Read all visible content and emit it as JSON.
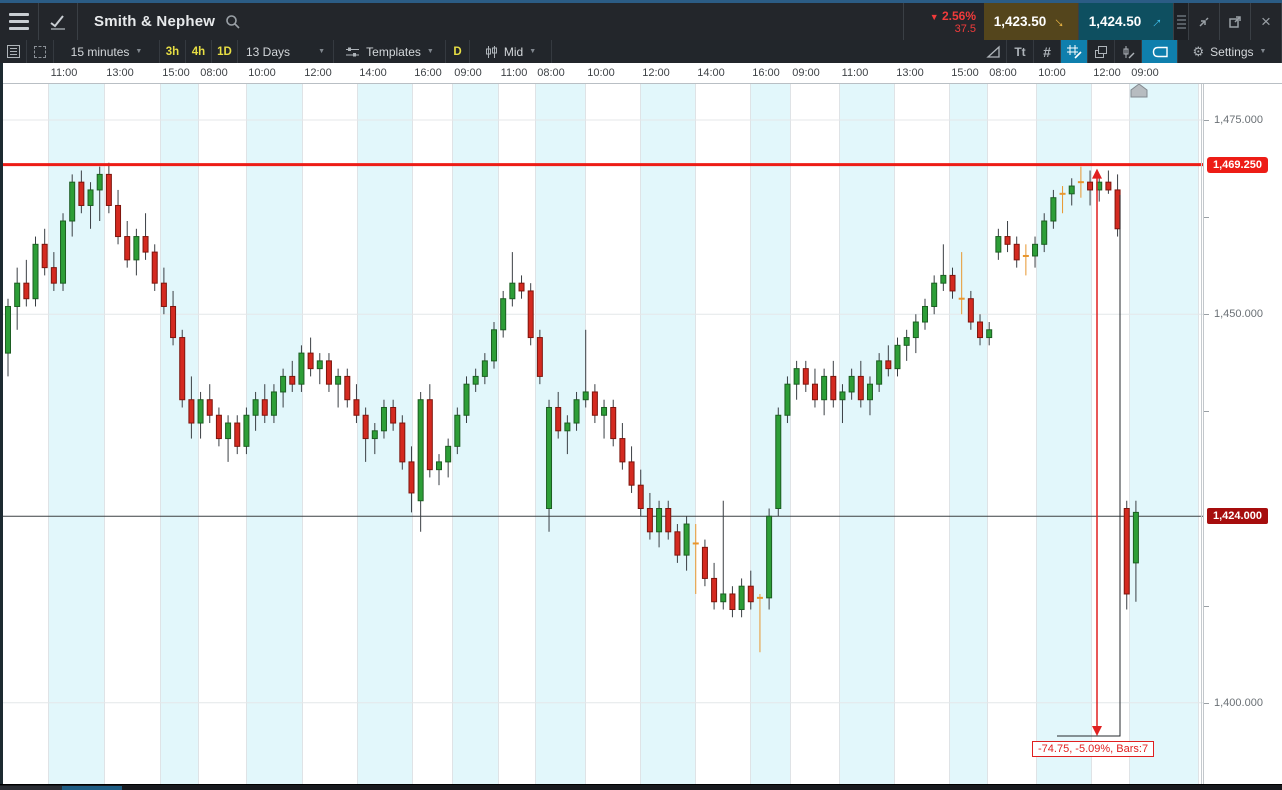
{
  "header": {
    "title": "Smith & Nephew",
    "change_direction": "down",
    "change_pct": "2.56%",
    "change_points": "37.5",
    "sell_price": "1,423.50",
    "buy_price": "1,424.50"
  },
  "toolbar": {
    "interval": "15 minutes",
    "quick_intervals": [
      "3h",
      "4h",
      "1D"
    ],
    "range": "13 Days",
    "templates": "Templates",
    "day_button": "D",
    "price_mode": "Mid",
    "text_tool": "Tt",
    "settings": "Settings"
  },
  "chart_data": {
    "type": "candlestick",
    "instrument": "Smith & Nephew",
    "interval": "15 minutes",
    "range": "13 Days",
    "time_labels": [
      "11:00",
      "13:00",
      "15:00",
      "08:00",
      "10:00",
      "12:00",
      "14:00",
      "16:00",
      "09:00",
      "11:00",
      "08:00",
      "10:00",
      "12:00",
      "14:00",
      "16:00",
      "09:00",
      "11:00",
      "13:00",
      "15:00",
      "08:00",
      "10:00",
      "12:00",
      "09:00"
    ],
    "price_ticks": [
      {
        "label": "1,475.000",
        "value": 1475
      },
      {
        "label": "1,450.000",
        "value": 1450
      },
      {
        "label": "1,400.000",
        "value": 1400
      }
    ],
    "minor_tick_values": [
      1462.5,
      1437.5,
      1412.5
    ],
    "horizontal_line": {
      "value": 1469.25,
      "label": "1,469.250"
    },
    "current_price": {
      "value": 1424.0,
      "label": "1,424.000"
    },
    "measurement": {
      "text": "-74.75, -5.09%, Bars:7",
      "from": 1469.25,
      "change": -74.75,
      "pct": "-5.09%",
      "bars": 7
    },
    "ylim": [
      1394,
      1480
    ],
    "candles": [
      [
        1445,
        1452,
        1442,
        1451
      ],
      [
        1451,
        1456,
        1448,
        1454
      ],
      [
        1454,
        1457,
        1451,
        1452
      ],
      [
        1452,
        1460,
        1451,
        1459
      ],
      [
        1459,
        1461,
        1455,
        1456
      ],
      [
        1456,
        1458,
        1453,
        1454
      ],
      [
        1454,
        1463,
        1453,
        1462
      ],
      [
        1462,
        1468,
        1460,
        1467
      ],
      [
        1467,
        1468.5,
        1463,
        1464
      ],
      [
        1464,
        1467,
        1461,
        1466
      ],
      [
        1466,
        1469,
        1462,
        1468
      ],
      [
        1468,
        1469.5,
        1463,
        1464
      ],
      [
        1464,
        1466,
        1459,
        1460
      ],
      [
        1460,
        1462,
        1456,
        1457
      ],
      [
        1457,
        1461,
        1455,
        1460
      ],
      [
        1460,
        1463,
        1457,
        1458
      ],
      [
        1458,
        1459,
        1453,
        1454
      ],
      [
        1454,
        1456,
        1450,
        1451
      ],
      [
        1451,
        1453,
        1446,
        1447
      ],
      [
        1447,
        1448,
        1438,
        1439
      ],
      [
        1439,
        1442,
        1434,
        1436
      ],
      [
        1436,
        1440,
        1434,
        1439
      ],
      [
        1439,
        1441,
        1436,
        1437
      ],
      [
        1437,
        1438,
        1433,
        1434
      ],
      [
        1434,
        1437,
        1431,
        1436
      ],
      [
        1436,
        1437,
        1432,
        1433
      ],
      [
        1433,
        1438,
        1432,
        1437
      ],
      [
        1437,
        1440,
        1435,
        1439
      ],
      [
        1439,
        1441,
        1436,
        1437
      ],
      [
        1437,
        1441,
        1436,
        1440
      ],
      [
        1440,
        1443,
        1438,
        1442
      ],
      [
        1442,
        1444,
        1440,
        1441
      ],
      [
        1441,
        1446,
        1440,
        1445
      ],
      [
        1445,
        1447,
        1442,
        1443
      ],
      [
        1443,
        1445,
        1441,
        1444
      ],
      [
        1444,
        1445,
        1440,
        1441
      ],
      [
        1441,
        1443,
        1438,
        1442
      ],
      [
        1442,
        1443,
        1438,
        1439
      ],
      [
        1439,
        1441,
        1436,
        1437
      ],
      [
        1437,
        1438,
        1431,
        1434
      ],
      [
        1434,
        1436,
        1432,
        1435
      ],
      [
        1435,
        1439,
        1434,
        1438
      ],
      [
        1438,
        1439,
        1435,
        1436
      ],
      [
        1436,
        1437,
        1430,
        1431
      ],
      [
        1431,
        1433,
        1424.5,
        1427
      ],
      [
        1426,
        1440,
        1422,
        1439
      ],
      [
        1439,
        1441,
        1429,
        1430
      ],
      [
        1430,
        1432,
        1428,
        1431
      ],
      [
        1431,
        1434,
        1429,
        1433
      ],
      [
        1433,
        1438,
        1432,
        1437
      ],
      [
        1437,
        1442,
        1436,
        1441
      ],
      [
        1441,
        1443,
        1440,
        1442
      ],
      [
        1442,
        1445,
        1441,
        1444
      ],
      [
        1444,
        1449,
        1443,
        1448
      ],
      [
        1448,
        1453,
        1447,
        1452
      ],
      [
        1452,
        1458,
        1451,
        1454
      ],
      [
        1454,
        1455,
        1452,
        1453
      ],
      [
        1453,
        1454,
        1446,
        1447
      ],
      [
        1447,
        1448,
        1441,
        1442
      ],
      [
        1425,
        1439,
        1422,
        1438
      ],
      [
        1438,
        1440,
        1434,
        1435
      ],
      [
        1435,
        1437,
        1432,
        1436
      ],
      [
        1436,
        1440,
        1435,
        1439
      ],
      [
        1439,
        1448,
        1438,
        1440
      ],
      [
        1440,
        1441,
        1436,
        1437
      ],
      [
        1437,
        1439,
        1434,
        1438
      ],
      [
        1438,
        1439,
        1433,
        1434
      ],
      [
        1434,
        1436,
        1430,
        1431
      ],
      [
        1431,
        1433,
        1427,
        1428
      ],
      [
        1428,
        1430,
        1424,
        1425
      ],
      [
        1425,
        1427,
        1421,
        1422
      ],
      [
        1422,
        1426,
        1420,
        1425
      ],
      [
        1425,
        1426,
        1421,
        1422
      ],
      [
        1422,
        1423,
        1418,
        1419
      ],
      [
        1419,
        1424,
        1417,
        1423
      ],
      [
        1420,
        1423,
        1414,
        1420.5
      ],
      [
        1420,
        1421,
        1415,
        1416
      ],
      [
        1416,
        1418,
        1412,
        1413
      ],
      [
        1413,
        1426,
        1412,
        1414
      ],
      [
        1414,
        1415,
        1411,
        1412
      ],
      [
        1412,
        1416,
        1411,
        1415
      ],
      [
        1415,
        1417,
        1412,
        1413
      ],
      [
        1413,
        1414,
        1406.5,
        1413.5
      ],
      [
        1413.5,
        1425,
        1412,
        1424
      ],
      [
        1425,
        1438,
        1424,
        1437
      ],
      [
        1437,
        1442,
        1436,
        1441
      ],
      [
        1441,
        1444,
        1439,
        1443
      ],
      [
        1443,
        1444,
        1440,
        1441
      ],
      [
        1441,
        1443,
        1438,
        1439
      ],
      [
        1439,
        1443,
        1437,
        1442
      ],
      [
        1442,
        1444,
        1438,
        1439
      ],
      [
        1439,
        1441,
        1436,
        1440
      ],
      [
        1440,
        1443,
        1439,
        1442
      ],
      [
        1442,
        1444,
        1438,
        1439
      ],
      [
        1439,
        1442,
        1437,
        1441
      ],
      [
        1441,
        1445,
        1440,
        1444
      ],
      [
        1444,
        1446,
        1442,
        1443
      ],
      [
        1443,
        1447,
        1442,
        1446
      ],
      [
        1446,
        1448,
        1444,
        1447
      ],
      [
        1447,
        1450,
        1445,
        1449
      ],
      [
        1449,
        1452,
        1448,
        1451
      ],
      [
        1451,
        1455,
        1450,
        1454
      ],
      [
        1454,
        1459,
        1453,
        1455
      ],
      [
        1455,
        1456,
        1452,
        1453
      ],
      [
        1452.5,
        1458,
        1450,
        1452
      ],
      [
        1452,
        1453,
        1448,
        1449
      ],
      [
        1449,
        1450,
        1446,
        1447
      ],
      [
        1447,
        1449,
        1446,
        1448
      ],
      [
        1458,
        1461,
        1457,
        1460
      ],
      [
        1460,
        1462,
        1458,
        1459
      ],
      [
        1459,
        1460,
        1456,
        1457
      ],
      [
        1457,
        1459,
        1455,
        1457.5
      ],
      [
        1457.5,
        1460,
        1456,
        1459
      ],
      [
        1459,
        1463,
        1458,
        1462
      ],
      [
        1462,
        1466,
        1461,
        1465
      ],
      [
        1465,
        1466.5,
        1463,
        1465.5
      ],
      [
        1465.5,
        1467.5,
        1464,
        1466.5
      ],
      [
        1466.5,
        1469,
        1465,
        1467
      ],
      [
        1467,
        1468.5,
        1464,
        1466
      ],
      [
        1466,
        1467.5,
        1464.5,
        1467
      ],
      [
        1467,
        1468.5,
        1465.5,
        1466
      ],
      [
        1466,
        1468,
        1460,
        1461
      ],
      [
        1425,
        1426,
        1412,
        1414
      ],
      [
        1418,
        1426,
        1413,
        1424.5
      ]
    ]
  },
  "colors": {
    "up": "#2d9e37",
    "down": "#d42a20",
    "doji": "#e8962e",
    "band": "#e2f7fb",
    "hline": "#ed1c16",
    "current_line": "#3c4043",
    "accent_active": "#0f7fad",
    "sell_bg": "#54451c",
    "buy_bg": "#0e4f60",
    "sell_arrow": "#eab544",
    "buy_arrow": "#3fc1ef",
    "change_red": "#f23b3b"
  }
}
